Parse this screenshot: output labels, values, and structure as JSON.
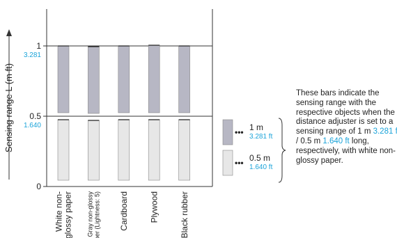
{
  "chart_data": {
    "type": "bar",
    "ylabel": "Sensing range L (m ft)",
    "ylim": [
      0,
      1.25
    ],
    "yticks": [
      {
        "value": 0,
        "label": "0",
        "sub": ""
      },
      {
        "value": 0.5,
        "label": "0.5",
        "sub": "1.640"
      },
      {
        "value": 1,
        "label": "1",
        "sub": "3.281"
      }
    ],
    "categories": [
      "White non-glossy paper",
      "Gray non-glossy paper (Lightness: 5)",
      "Cardboard",
      "Plywood",
      "Black rubber"
    ],
    "category_lines": [
      [
        "White non-",
        "glossy paper"
      ],
      [
        "Gray non-glossy",
        "paper (Lightness: 5)"
      ],
      [
        "Cardboard"
      ],
      [
        "Plywood"
      ],
      [
        "Black rubber"
      ]
    ],
    "series": [
      {
        "name": "1 m / 3.281 ft",
        "color": "#b7b7c4",
        "values": [
          1.0,
          0.995,
          1.0,
          1.005,
          1.0
        ]
      },
      {
        "name": "0.5 m / 1.640 ft",
        "color": "#e7e7e7",
        "values": [
          0.5,
          0.495,
          0.5,
          0.5,
          0.5
        ]
      }
    ],
    "legend": [
      {
        "label": "1 m",
        "sub": "3.281 ft",
        "color": "#b7b7c4"
      },
      {
        "label": "0.5 m",
        "sub": "1.640 ft",
        "color": "#e7e7e7"
      }
    ],
    "legend_dots": "•••",
    "grid": true,
    "legend_position": "right"
  },
  "note": {
    "before": "These bars indicate the sensing range with the respective objects when the distance adjuster is set to a sensing range of 1 m ",
    "ft1": "3.281 ft",
    "mid": " / 0.5 m ",
    "ft2": "1.640 ft",
    "after": " long, respectively, with white non-glossy paper."
  }
}
